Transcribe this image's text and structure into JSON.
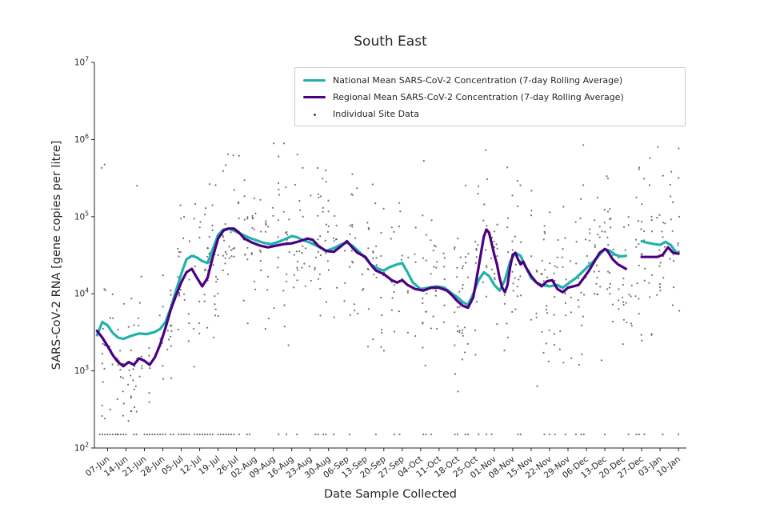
{
  "chart_data": {
    "type": "line+scatter",
    "title": "South East",
    "xlabel": "Date Sample Collected",
    "ylabel": "SARS-CoV-2 RNA [gene copies per litre]",
    "colors": {
      "axis": "#262626",
      "text": "#262626",
      "background": "#ffffff"
    },
    "y_scale": "log10",
    "y_range_log": [
      2,
      7
    ],
    "y_tick_exponents": [
      2,
      3,
      4,
      5,
      6,
      7
    ],
    "x_range_days": [
      -5,
      220
    ],
    "x_tick_labels": [
      "07-Jun",
      "14-Jun",
      "21-Jun",
      "28-Jun",
      "05-Jul",
      "12-Jul",
      "19-Jul",
      "26-Jul",
      "02-Aug",
      "09-Aug",
      "16-Aug",
      "23-Aug",
      "30-Aug",
      "06-Sep",
      "13-Sep",
      "20-Sep",
      "27-Sep",
      "04-Oct",
      "11-Oct",
      "18-Oct",
      "25-Oct",
      "01-Nov",
      "08-Nov",
      "15-Nov",
      "22-Nov",
      "29-Nov",
      "06-Dec",
      "13-Dec",
      "20-Dec",
      "27-Dec",
      "03-Jan",
      "10-Jan"
    ],
    "x_tick_step_days": 7,
    "grid": false,
    "legend_position": "upper-center-inside",
    "series": [
      {
        "name": "National Mean SARS-CoV-2 Concentration (7-day Rolling Average)",
        "color": "#20B2AA",
        "width": 3.2,
        "segments": [
          [
            [
              -4,
              2900
            ],
            [
              -2,
              4300
            ],
            [
              0,
              3900
            ],
            [
              2,
              3100
            ],
            [
              4,
              2700
            ],
            [
              6,
              2600
            ],
            [
              9,
              2850
            ],
            [
              12,
              3050
            ],
            [
              15,
              3000
            ],
            [
              18,
              3200
            ],
            [
              20,
              3500
            ],
            [
              22,
              4300
            ],
            [
              24,
              6500
            ],
            [
              26,
              11000
            ],
            [
              28,
              18000
            ],
            [
              30,
              28000
            ],
            [
              32,
              31000
            ],
            [
              34,
              29500
            ],
            [
              36,
              26500
            ],
            [
              38,
              25000
            ],
            [
              40,
              38000
            ],
            [
              42,
              58000
            ],
            [
              44,
              68000
            ],
            [
              46,
              70000
            ],
            [
              48,
              66000
            ],
            [
              50,
              61000
            ],
            [
              52,
              57000
            ],
            [
              54,
              53000
            ],
            [
              56,
              50000
            ],
            [
              59,
              46000
            ],
            [
              62,
              44000
            ],
            [
              65,
              47000
            ],
            [
              68,
              52000
            ],
            [
              70,
              56000
            ],
            [
              72,
              54000
            ],
            [
              74,
              50000
            ],
            [
              77,
              46000
            ],
            [
              80,
              41000
            ],
            [
              83,
              36000
            ],
            [
              86,
              39000
            ],
            [
              89,
              44000
            ],
            [
              91,
              46000
            ],
            [
              93,
              42000
            ],
            [
              96,
              34000
            ],
            [
              98,
              29000
            ],
            [
              100,
              24000
            ],
            [
              103,
              21000
            ],
            [
              105,
              20000
            ],
            [
              107,
              22000
            ],
            [
              110,
              24000
            ],
            [
              112,
              25000
            ],
            [
              114,
              19000
            ],
            [
              116,
              14000
            ],
            [
              119,
              11500
            ],
            [
              122,
              12000
            ],
            [
              125,
              12500
            ],
            [
              128,
              12000
            ],
            [
              131,
              10000
            ],
            [
              133,
              9000
            ],
            [
              135,
              7800
            ],
            [
              137,
              7200
            ],
            [
              139,
              10000
            ],
            [
              141,
              15000
            ],
            [
              143,
              19000
            ],
            [
              145,
              17000
            ],
            [
              147,
              13000
            ],
            [
              149,
              11000
            ],
            [
              151,
              15000
            ],
            [
              153,
              26000
            ],
            [
              155,
              34000
            ],
            [
              157,
              31000
            ],
            [
              159,
              22000
            ],
            [
              161,
              16000
            ],
            [
              163,
              14000
            ],
            [
              165,
              13000
            ],
            [
              168,
              12500
            ],
            [
              171,
              13000
            ],
            [
              173,
              12000
            ],
            [
              175,
              13500
            ],
            [
              178,
              16000
            ],
            [
              181,
              20000
            ],
            [
              184,
              25000
            ],
            [
              187,
              32000
            ],
            [
              189,
              38000
            ],
            [
              191,
              36000
            ],
            [
              193,
              32000
            ],
            [
              195,
              30500
            ],
            [
              197,
              31000
            ]
          ],
          [
            [
              203,
              48000
            ],
            [
              205,
              46000
            ],
            [
              208,
              44000
            ],
            [
              210,
              43000
            ],
            [
              212,
              47000
            ],
            [
              214,
              43000
            ],
            [
              216,
              35000
            ],
            [
              217,
              34000
            ]
          ]
        ]
      },
      {
        "name": "Regional Mean SARS-CoV-2 Concentration (7-day Rolling Average)",
        "color": "#4B0082",
        "width": 3.2,
        "segments": [
          [
            [
              -4,
              3300
            ],
            [
              -2,
              2700
            ],
            [
              0,
              2100
            ],
            [
              2,
              1600
            ],
            [
              4,
              1300
            ],
            [
              6,
              1150
            ],
            [
              8,
              1300
            ],
            [
              10,
              1200
            ],
            [
              12,
              1450
            ],
            [
              14,
              1350
            ],
            [
              16,
              1200
            ],
            [
              18,
              1500
            ],
            [
              20,
              2200
            ],
            [
              22,
              3600
            ],
            [
              24,
              6200
            ],
            [
              26,
              9500
            ],
            [
              28,
              14000
            ],
            [
              30,
              19000
            ],
            [
              32,
              21000
            ],
            [
              34,
              16000
            ],
            [
              36,
              12500
            ],
            [
              38,
              16000
            ],
            [
              40,
              30000
            ],
            [
              42,
              52000
            ],
            [
              44,
              66000
            ],
            [
              46,
              70000
            ],
            [
              48,
              70000
            ],
            [
              50,
              62000
            ],
            [
              52,
              52000
            ],
            [
              55,
              46000
            ],
            [
              58,
              42000
            ],
            [
              61,
              40000
            ],
            [
              64,
              42000
            ],
            [
              67,
              44000
            ],
            [
              70,
              45000
            ],
            [
              73,
              48000
            ],
            [
              76,
              52000
            ],
            [
              78,
              50000
            ],
            [
              80,
              42000
            ],
            [
              83,
              36000
            ],
            [
              86,
              35000
            ],
            [
              89,
              42000
            ],
            [
              91,
              48000
            ],
            [
              93,
              40000
            ],
            [
              95,
              34000
            ],
            [
              98,
              30000
            ],
            [
              100,
              24000
            ],
            [
              102,
              20000
            ],
            [
              105,
              18000
            ],
            [
              108,
              15000
            ],
            [
              110,
              14000
            ],
            [
              112,
              15000
            ],
            [
              114,
              13000
            ],
            [
              117,
              11500
            ],
            [
              120,
              11000
            ],
            [
              123,
              12000
            ],
            [
              126,
              12000
            ],
            [
              129,
              11000
            ],
            [
              131,
              9500
            ],
            [
              133,
              8000
            ],
            [
              135,
              7000
            ],
            [
              137,
              6600
            ],
            [
              139,
              9000
            ],
            [
              140,
              14000
            ],
            [
              141,
              22000
            ],
            [
              142,
              35000
            ],
            [
              143,
              55000
            ],
            [
              144,
              68000
            ],
            [
              145,
              62000
            ],
            [
              146,
              45000
            ],
            [
              147,
              32000
            ],
            [
              148,
              24000
            ],
            [
              149,
              16000
            ],
            [
              150,
              12000
            ],
            [
              151,
              10500
            ],
            [
              152,
              13000
            ],
            [
              153,
              22000
            ],
            [
              154,
              32000
            ],
            [
              155,
              34000
            ],
            [
              156,
              28000
            ],
            [
              157,
              24000
            ],
            [
              158,
              26000
            ],
            [
              159,
              22000
            ],
            [
              161,
              17000
            ],
            [
              163,
              14000
            ],
            [
              165,
              12500
            ],
            [
              167,
              14500
            ],
            [
              169,
              15000
            ],
            [
              171,
              11500
            ],
            [
              173,
              10500
            ],
            [
              175,
              12000
            ],
            [
              177,
              12500
            ],
            [
              179,
              13000
            ],
            [
              181,
              16000
            ],
            [
              183,
              20000
            ],
            [
              185,
              26000
            ],
            [
              187,
              34000
            ],
            [
              189,
              38000
            ],
            [
              190,
              36000
            ],
            [
              192,
              28000
            ],
            [
              194,
              24000
            ],
            [
              196,
              22000
            ],
            [
              197,
              21000
            ]
          ],
          [
            [
              203,
              30000
            ],
            [
              206,
              30000
            ],
            [
              209,
              30000
            ],
            [
              211,
              32000
            ],
            [
              213,
              40000
            ],
            [
              215,
              34000
            ],
            [
              217,
              33000
            ]
          ]
        ]
      }
    ],
    "scatter": {
      "name": "Individual Site Data",
      "color": "#4d4d4d",
      "marker_radius": 1.1,
      "opacity": 0.8,
      "seed": 20210607,
      "spread_log10": 0.5,
      "lod_value": 150,
      "x_days": [
        -3,
        217
      ],
      "value_range": [
        150,
        900000
      ]
    }
  }
}
